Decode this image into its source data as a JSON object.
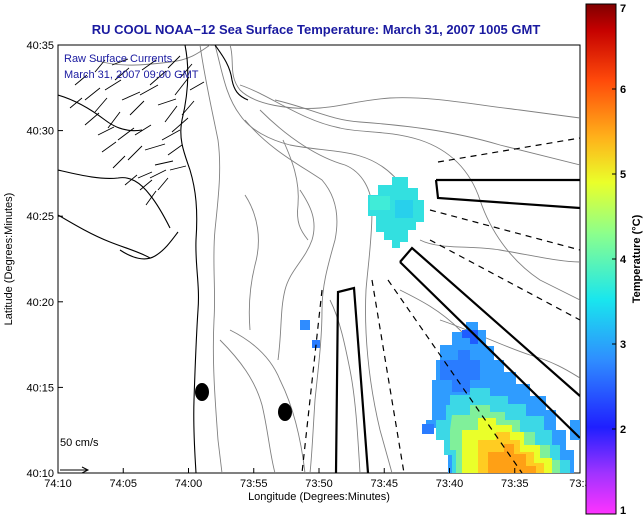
{
  "title": "RU COOL  NOAA−12  Sea Surface Temperature:  March 31, 2007 1005 GMT",
  "overlay": {
    "line1": "Raw Surface Currents",
    "line2": "March 31, 2007 09:00 GMT"
  },
  "scale_label": "50 cm/s",
  "axes": {
    "xlabel": "Longitude (Degrees:Minutes)",
    "ylabel": "Latitude (Degrees:Minutes)",
    "xticks": [
      "74:10",
      "74:05",
      "74:00",
      "73:55",
      "73:50",
      "73:45",
      "73:40",
      "73:35",
      "73:3"
    ],
    "yticks": [
      "40:35",
      "40:30",
      "40:25",
      "40:20",
      "40:15",
      "40:10"
    ]
  },
  "colorbar": {
    "label": "Temperature (°C)",
    "ticks": [
      "1",
      "2",
      "3",
      "4",
      "5",
      "6",
      "7"
    ],
    "min": 1,
    "max": 7
  },
  "colors": {
    "title": "#1a1aa0",
    "land_coast": "#000000",
    "bathymetry": "#777777"
  }
}
